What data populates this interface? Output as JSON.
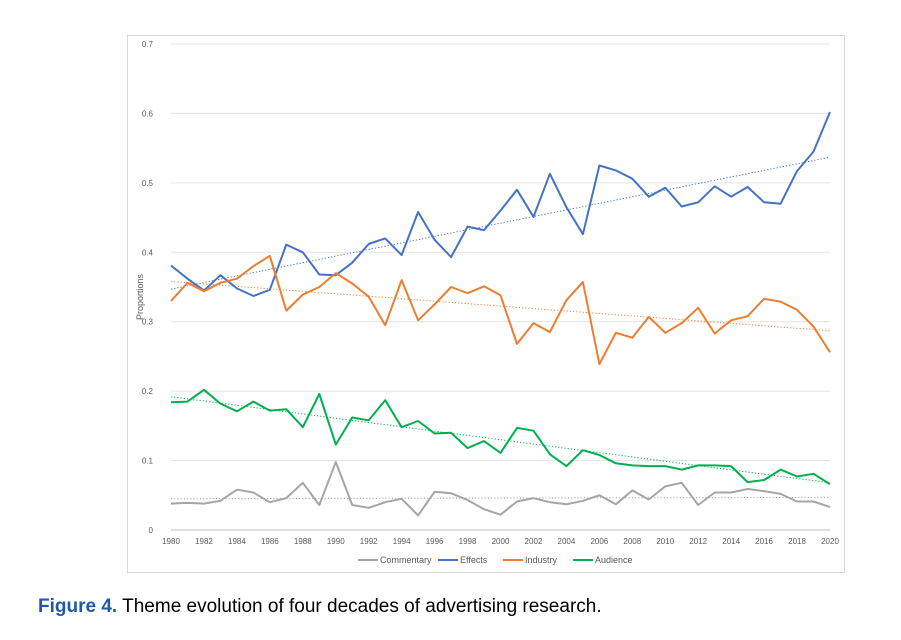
{
  "caption": {
    "label": "Figure 4.",
    "text": "Theme evolution of four decades of advertising research."
  },
  "chart_data": {
    "type": "line",
    "title": "",
    "xlabel": "",
    "ylabel": "Proportions",
    "ylim": [
      0,
      0.7
    ],
    "yticks": [
      "0",
      "0.1",
      "0.2",
      "0.3",
      "0.4",
      "0.5",
      "0.6",
      "0.7"
    ],
    "xlim": [
      1980,
      2020
    ],
    "xticks": [
      "1980",
      "1982",
      "1984",
      "1986",
      "1988",
      "1990",
      "1992",
      "1994",
      "1996",
      "1998",
      "2000",
      "2002",
      "2004",
      "2006",
      "2008",
      "2010",
      "2012",
      "2014",
      "2016",
      "2018",
      "2020"
    ],
    "grid": true,
    "legend_position": "bottom",
    "x": [
      1980,
      1981,
      1982,
      1983,
      1984,
      1985,
      1986,
      1987,
      1988,
      1989,
      1990,
      1991,
      1992,
      1993,
      1994,
      1995,
      1996,
      1997,
      1998,
      1999,
      2000,
      2001,
      2002,
      2003,
      2004,
      2005,
      2006,
      2007,
      2008,
      2009,
      2010,
      2011,
      2012,
      2013,
      2014,
      2015,
      2016,
      2017,
      2018,
      2019,
      2020
    ],
    "series": [
      {
        "name": "Commentary",
        "color": "#a5a5a5",
        "values": [
          0.038,
          0.039,
          0.038,
          0.042,
          0.058,
          0.054,
          0.04,
          0.046,
          0.068,
          0.036,
          0.098,
          0.036,
          0.032,
          0.04,
          0.045,
          0.021,
          0.055,
          0.053,
          0.043,
          0.03,
          0.022,
          0.041,
          0.046,
          0.04,
          0.037,
          0.042,
          0.05,
          0.037,
          0.057,
          0.044,
          0.063,
          0.068,
          0.036,
          0.054,
          0.054,
          0.059,
          0.056,
          0.052,
          0.041,
          0.041,
          0.033
        ],
        "trend": [
          0.045,
          0.047
        ]
      },
      {
        "name": "Effects",
        "color": "#4472c4",
        "values": [
          0.381,
          0.362,
          0.345,
          0.367,
          0.348,
          0.337,
          0.346,
          0.411,
          0.4,
          0.368,
          0.367,
          0.385,
          0.412,
          0.42,
          0.396,
          0.458,
          0.418,
          0.393,
          0.437,
          0.432,
          0.46,
          0.49,
          0.451,
          0.513,
          0.465,
          0.426,
          0.525,
          0.518,
          0.506,
          0.48,
          0.493,
          0.466,
          0.472,
          0.495,
          0.48,
          0.494,
          0.472,
          0.47,
          0.517,
          0.545,
          0.602
        ],
        "trend": [
          0.347,
          0.537
        ]
      },
      {
        "name": "Industry",
        "color": "#ed7d31",
        "values": [
          0.33,
          0.356,
          0.344,
          0.356,
          0.362,
          0.38,
          0.395,
          0.316,
          0.339,
          0.35,
          0.37,
          0.355,
          0.336,
          0.295,
          0.36,
          0.302,
          0.325,
          0.35,
          0.341,
          0.351,
          0.338,
          0.268,
          0.298,
          0.285,
          0.331,
          0.357,
          0.239,
          0.284,
          0.277,
          0.307,
          0.284,
          0.298,
          0.32,
          0.283,
          0.302,
          0.308,
          0.333,
          0.329,
          0.317,
          0.293,
          0.256
        ],
        "trend": [
          0.358,
          0.287
        ]
      },
      {
        "name": "Audience",
        "color": "#00b050",
        "values": [
          0.184,
          0.185,
          0.202,
          0.182,
          0.171,
          0.185,
          0.172,
          0.174,
          0.148,
          0.196,
          0.123,
          0.162,
          0.158,
          0.187,
          0.148,
          0.157,
          0.139,
          0.14,
          0.118,
          0.128,
          0.111,
          0.147,
          0.143,
          0.109,
          0.092,
          0.115,
          0.108,
          0.096,
          0.093,
          0.092,
          0.092,
          0.087,
          0.093,
          0.093,
          0.092,
          0.069,
          0.072,
          0.087,
          0.077,
          0.081,
          0.066
        ],
        "trend": [
          0.192,
          0.068
        ]
      }
    ]
  }
}
